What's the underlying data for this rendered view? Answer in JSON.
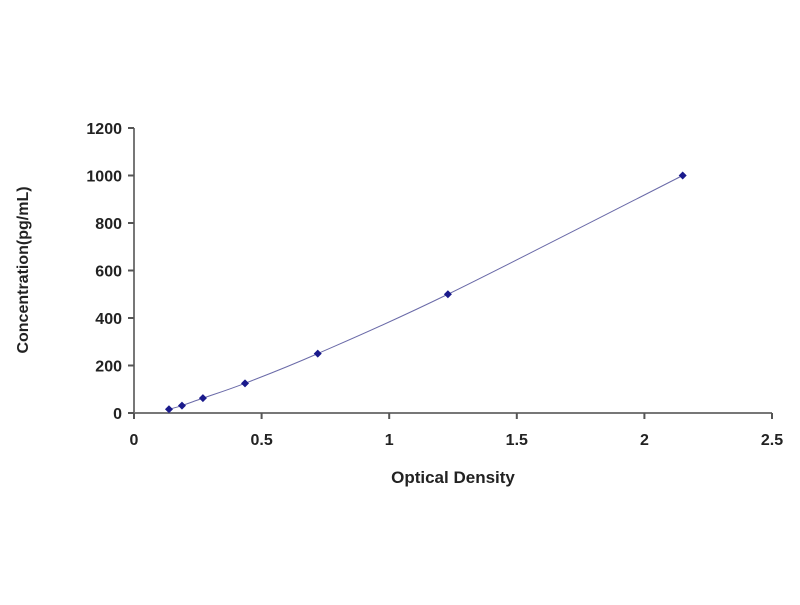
{
  "chart_data": {
    "type": "scatter",
    "title": "",
    "xlabel": "Optical Density",
    "ylabel": "Concentration(pg/mL)",
    "xlim": [
      0,
      2.5
    ],
    "ylim": [
      0,
      1200
    ],
    "xticks": [
      0,
      0.5,
      1,
      1.5,
      2,
      2.5
    ],
    "xtick_labels": [
      "0",
      "0.5",
      "1",
      "1.5",
      "2",
      "2.5"
    ],
    "yticks": [
      0,
      200,
      400,
      600,
      800,
      1000,
      1200
    ],
    "ytick_labels": [
      "0",
      "200",
      "400",
      "600",
      "800",
      "1000",
      "1200"
    ],
    "grid": false,
    "legend": "none",
    "series": [
      {
        "x": [
          0.137,
          0.188,
          0.27,
          0.435,
          0.72,
          1.23,
          2.15
        ],
        "y": [
          15.6,
          31.25,
          62.5,
          125,
          250,
          500,
          1000
        ],
        "marker": "diamond",
        "line": "smooth fit",
        "color": "#1a1a8c",
        "line_color": "#6a6aa8"
      }
    ]
  }
}
